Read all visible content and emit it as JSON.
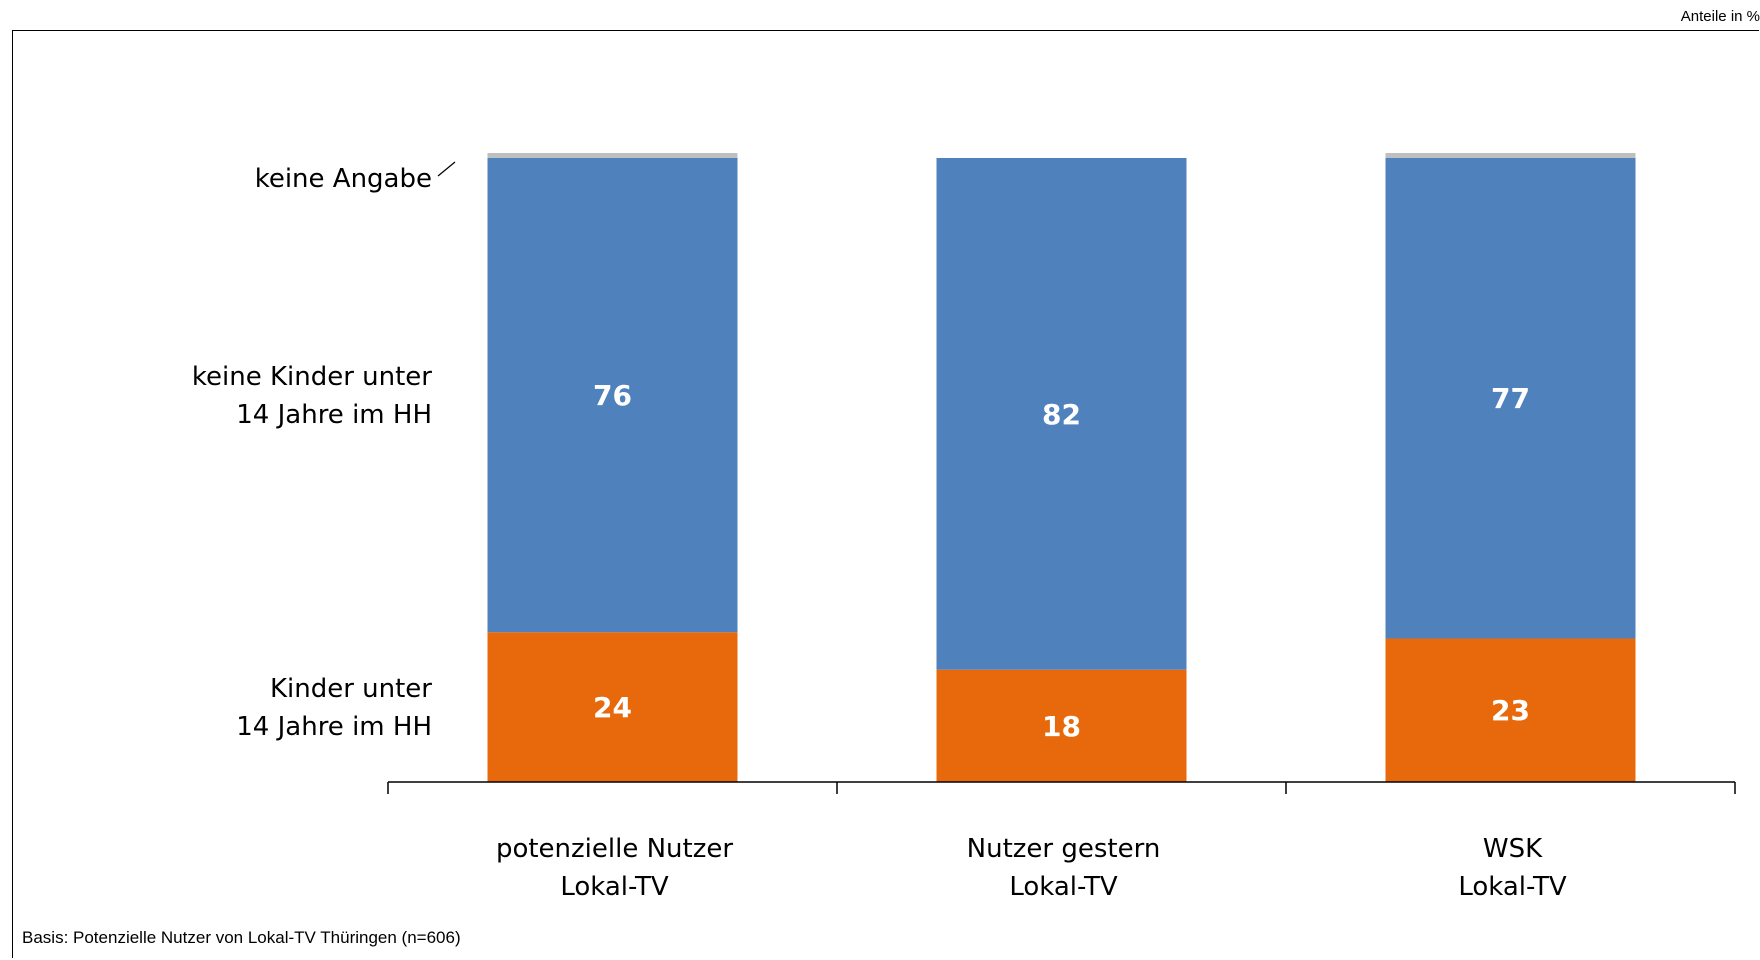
{
  "unit_note": "Anteile in %",
  "footnote": "Basis: Potenzielle Nutzer von Lokal-TV Thüringen (n=606)",
  "chart_data": {
    "type": "bar",
    "stacked": true,
    "ylim": [
      0,
      100
    ],
    "grid": false,
    "categories": [
      [
        "potenzielle Nutzer",
        "Lokal-TV"
      ],
      [
        "Nutzer gestern",
        "Lokal-TV"
      ],
      [
        "WSK",
        "Lokal-TV"
      ]
    ],
    "series": [
      {
        "name": [
          "Kinder unter",
          "14 Jahre im HH"
        ],
        "color": "#E8690C",
        "values": [
          24,
          18,
          23
        ],
        "labels": [
          "24",
          "18",
          "23"
        ]
      },
      {
        "name": [
          "keine Kinder unter",
          "14 Jahre im HH"
        ],
        "color": "#4F81BD",
        "values": [
          76,
          82,
          77
        ],
        "labels": [
          "76",
          "82",
          "77"
        ]
      },
      {
        "name": [
          "keine Angabe"
        ],
        "color": "#BFBFBF",
        "values": [
          0.8,
          0,
          0.8
        ],
        "labels": [
          "",
          "",
          ""
        ]
      }
    ]
  }
}
